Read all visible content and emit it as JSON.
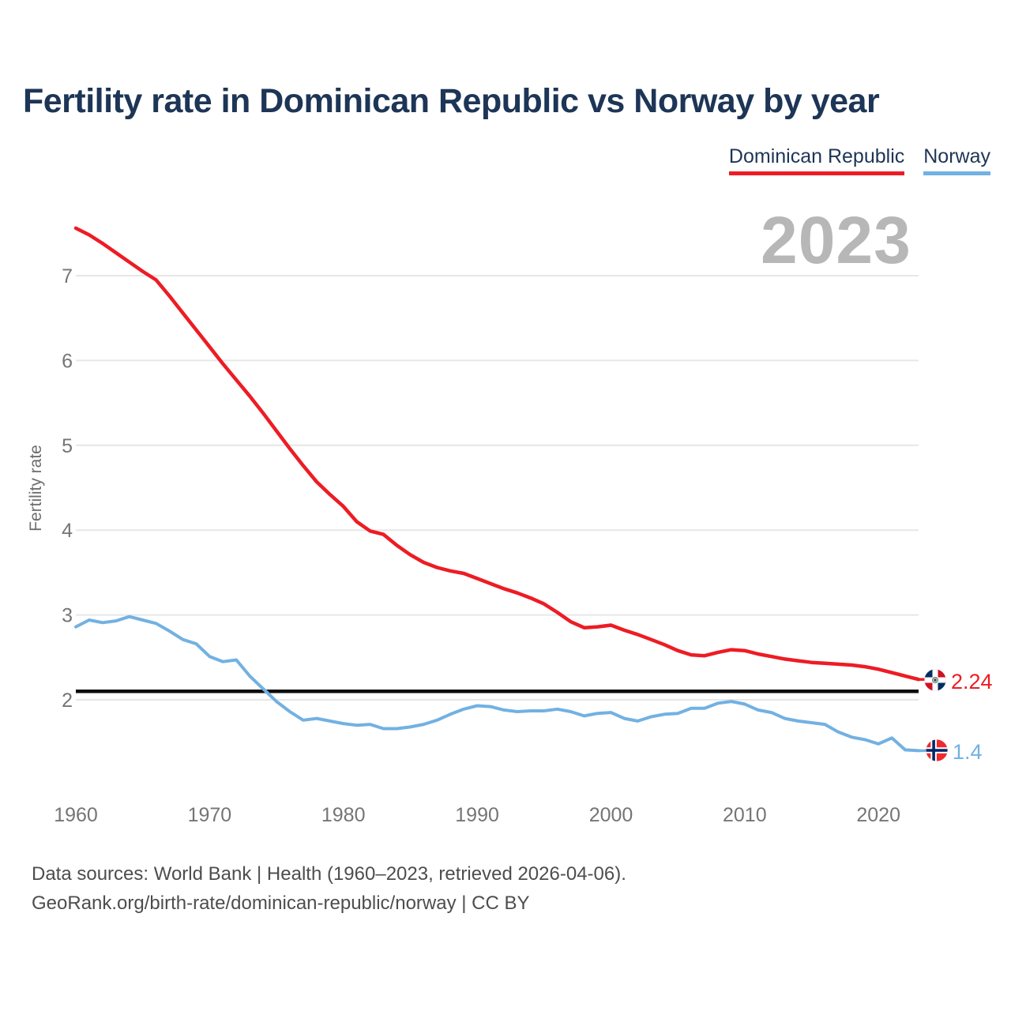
{
  "title": "Fertility rate in Dominican Republic vs Norway by year",
  "watermark_year": "2023",
  "legend": {
    "items": [
      {
        "label": "Dominican Republic",
        "color": "#ed1c24"
      },
      {
        "label": "Norway",
        "color": "#72b1e2"
      }
    ]
  },
  "y_axis": {
    "label": "Fertility rate",
    "ticks": [
      2,
      3,
      4,
      5,
      6,
      7
    ]
  },
  "x_axis": {
    "ticks": [
      1960,
      1970,
      1980,
      1990,
      2000,
      2010,
      2020
    ]
  },
  "end_labels": [
    {
      "series": "Dominican Republic",
      "value": "2.24",
      "flag": "dominican-republic-flag"
    },
    {
      "series": "Norway",
      "value": "1.4",
      "flag": "norway-flag"
    }
  ],
  "footer": {
    "line1": "Data sources: World Bank | Health (1960–2023, retrieved 2026-04-06).",
    "line2": "GeoRank.org/birth-rate/dominican-republic/norway | CC BY"
  },
  "chart_data": {
    "type": "line",
    "title": "Fertility rate in Dominican Republic vs Norway by year",
    "xlabel": "",
    "ylabel": "Fertility rate",
    "xlim": [
      1960,
      2023
    ],
    "ylim": [
      1.2,
      7.7
    ],
    "grid": true,
    "legend_position": "top-right",
    "reference_line": 2.1,
    "yticks": [
      2,
      3,
      4,
      5,
      6,
      7
    ],
    "xticks": [
      1960,
      1970,
      1980,
      1990,
      2000,
      2010,
      2020
    ],
    "x": [
      1960,
      1961,
      1962,
      1963,
      1964,
      1965,
      1966,
      1967,
      1968,
      1969,
      1970,
      1971,
      1972,
      1973,
      1974,
      1975,
      1976,
      1977,
      1978,
      1979,
      1980,
      1981,
      1982,
      1983,
      1984,
      1985,
      1986,
      1987,
      1988,
      1989,
      1990,
      1991,
      1992,
      1993,
      1994,
      1995,
      1996,
      1997,
      1998,
      1999,
      2000,
      2001,
      2002,
      2003,
      2004,
      2005,
      2006,
      2007,
      2008,
      2009,
      2010,
      2011,
      2012,
      2013,
      2014,
      2015,
      2016,
      2017,
      2018,
      2019,
      2020,
      2021,
      2022,
      2023
    ],
    "series": [
      {
        "name": "Dominican Republic",
        "color": "#ed1c24",
        "end_value": 2.24,
        "values": [
          7.56,
          7.48,
          7.38,
          7.27,
          7.16,
          7.05,
          6.95,
          6.76,
          6.56,
          6.36,
          6.16,
          5.96,
          5.77,
          5.58,
          5.38,
          5.17,
          4.96,
          4.76,
          4.57,
          4.42,
          4.28,
          4.1,
          3.99,
          3.95,
          3.82,
          3.71,
          3.62,
          3.56,
          3.52,
          3.49,
          3.43,
          3.37,
          3.31,
          3.26,
          3.2,
          3.13,
          3.03,
          2.92,
          2.85,
          2.86,
          2.88,
          2.82,
          2.77,
          2.71,
          2.65,
          2.58,
          2.53,
          2.52,
          2.56,
          2.59,
          2.58,
          2.54,
          2.51,
          2.48,
          2.46,
          2.44,
          2.43,
          2.42,
          2.41,
          2.39,
          2.36,
          2.32,
          2.28,
          2.24
        ]
      },
      {
        "name": "Norway",
        "color": "#72b1e2",
        "end_value": 1.4,
        "values": [
          2.86,
          2.94,
          2.91,
          2.93,
          2.98,
          2.94,
          2.9,
          2.81,
          2.71,
          2.66,
          2.51,
          2.45,
          2.47,
          2.28,
          2.13,
          1.98,
          1.86,
          1.76,
          1.78,
          1.75,
          1.72,
          1.7,
          1.71,
          1.66,
          1.66,
          1.68,
          1.71,
          1.76,
          1.83,
          1.89,
          1.93,
          1.92,
          1.88,
          1.86,
          1.87,
          1.87,
          1.89,
          1.86,
          1.81,
          1.84,
          1.85,
          1.78,
          1.75,
          1.8,
          1.83,
          1.84,
          1.9,
          1.9,
          1.96,
          1.98,
          1.95,
          1.88,
          1.85,
          1.78,
          1.75,
          1.73,
          1.71,
          1.62,
          1.56,
          1.53,
          1.48,
          1.55,
          1.41,
          1.4
        ]
      }
    ]
  }
}
